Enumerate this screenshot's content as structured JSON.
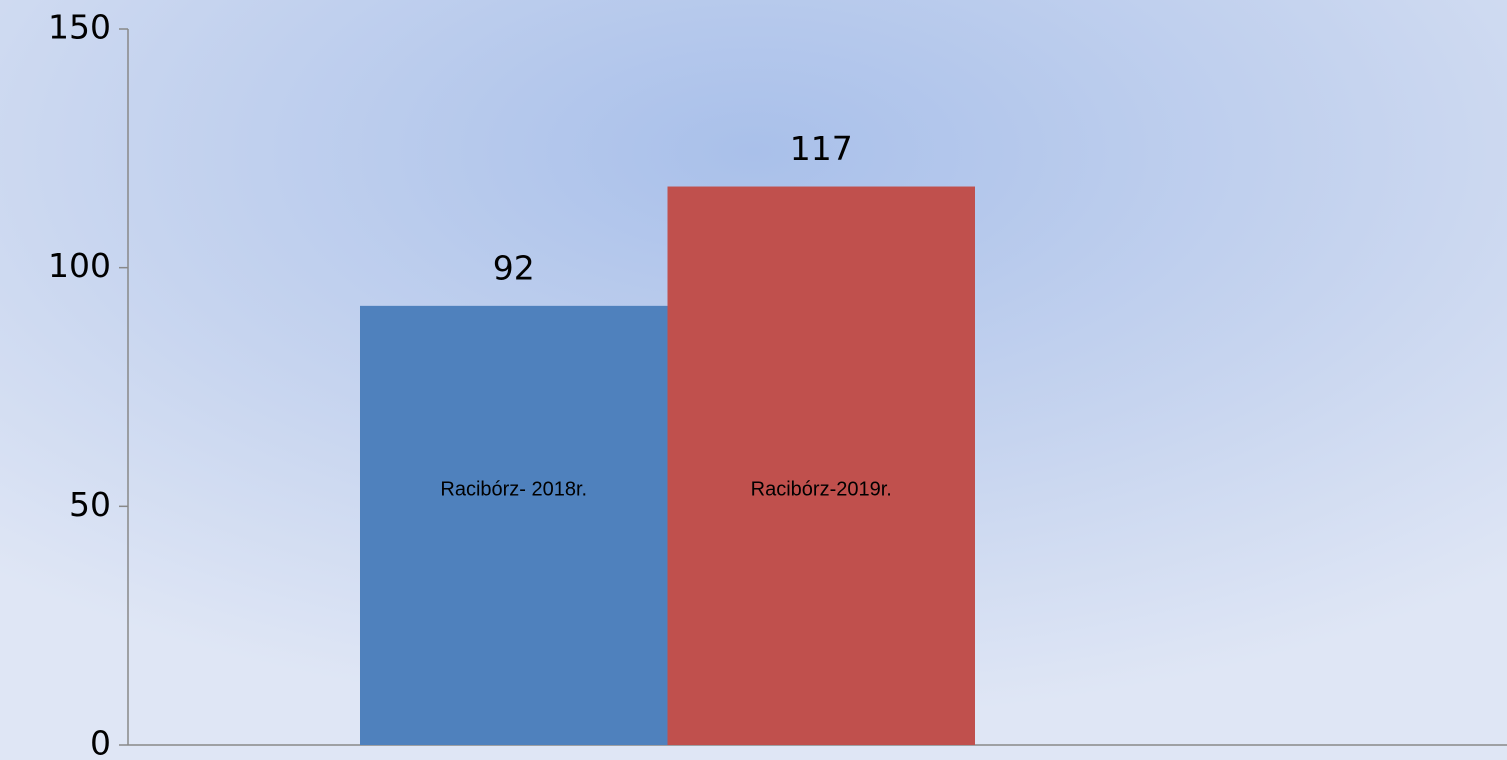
{
  "chart_data": {
    "type": "bar",
    "categories": [
      null
    ],
    "series": [
      {
        "name": "Racibórz- 2018r.",
        "color": "#4f81bd",
        "values": [
          92
        ]
      },
      {
        "name": "Racibórz-2019r.",
        "color": "#c0504d",
        "values": [
          117
        ]
      }
    ],
    "ylim": [
      0,
      150
    ],
    "yticks": [
      0,
      50,
      100,
      150
    ],
    "grid": false
  }
}
